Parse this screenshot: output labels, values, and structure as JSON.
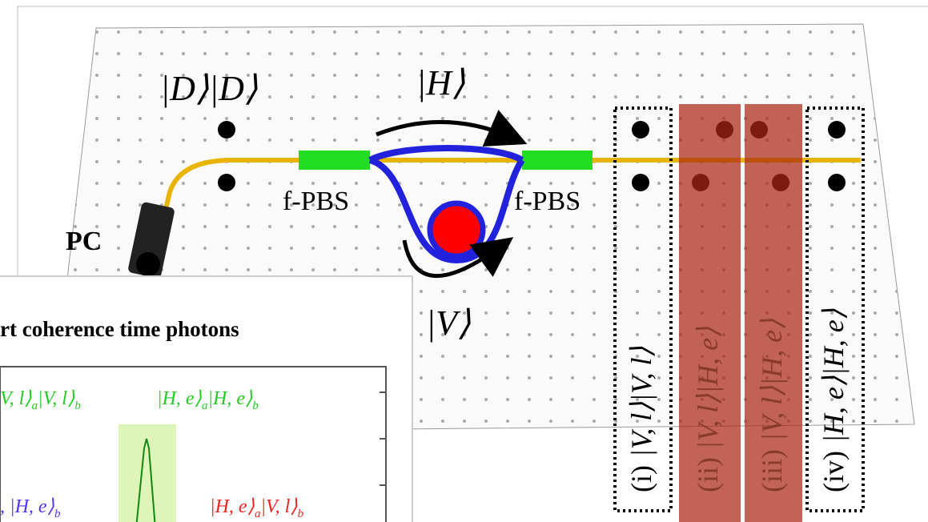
{
  "labels": {
    "input_state": "|D⟩|D⟩",
    "h_state": "|H⟩",
    "v_state": "|V⟩",
    "pc": "PC",
    "pbs_left": "f-PBS",
    "pbs_right": "f-PBS"
  },
  "columns": [
    {
      "index": "(i)",
      "state": "|V, l⟩|V, l⟩"
    },
    {
      "index": "(ii)",
      "state": "|V, l⟩|H, e⟩"
    },
    {
      "index": "(iii)",
      "state": "|V, l⟩|H, e⟩"
    },
    {
      "index": "(iv)",
      "state": "|H, e⟩|H, e⟩"
    }
  ],
  "inset": {
    "title": "rt coherence time photons",
    "top_left": [
      {
        "text": "V, l⟩",
        "sub": "a"
      },
      {
        "text": "|V, l⟩",
        "sub": "b"
      }
    ],
    "top_right": [
      {
        "text": "|H, e⟩",
        "sub": "a"
      },
      {
        "text": "|H, e⟩",
        "sub": "b"
      }
    ],
    "bottom_left": [
      {
        "text": ", |H, e⟩",
        "sub": "b"
      }
    ],
    "bottom_right": [
      {
        "text": "|H, e⟩",
        "sub": "a"
      },
      {
        "text": "|V, l⟩",
        "sub": "b"
      }
    ]
  }
}
